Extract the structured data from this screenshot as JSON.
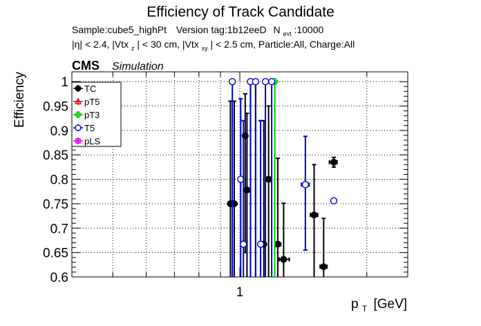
{
  "chart_data": {
    "type": "scatter",
    "title": "Efficiency of Track Candidate",
    "subtitle_line1": {
      "sample": "Sample:cube5_highPt",
      "version": "Version tag:1b12eeD",
      "n_label": "N",
      "n_sub": "evt",
      "n_value": ":10000"
    },
    "subtitle_line2": {
      "p1": "|η| < 2.4, |Vtx",
      "s1": "z",
      "p2": "| < 30 cm, |Vtx",
      "s2": "xy",
      "p3": "| < 2.5 cm, Particle:All, Charge:All"
    },
    "cms_label": "CMS",
    "simulation_label": "Simulation",
    "ylabel": "Efficiency",
    "xlabel_main": "p",
    "xlabel_sub": "T",
    "xlabel_unit": "[GeV]",
    "x_log_scale": true,
    "xlim": [
      0.4,
      2.5
    ],
    "ylim": [
      0.6,
      1.02
    ],
    "grid": true,
    "legend_position": "top-left",
    "x_tick_labels": [
      {
        "value": 1,
        "label": "1"
      }
    ],
    "y_tick_labels": [
      {
        "value": 1.0,
        "label": "1"
      },
      {
        "value": 0.95,
        "label": "0.95"
      },
      {
        "value": 0.9,
        "label": "0.9"
      },
      {
        "value": 0.85,
        "label": "0.85"
      },
      {
        "value": 0.8,
        "label": "0.8"
      },
      {
        "value": 0.75,
        "label": "0.75"
      },
      {
        "value": 0.7,
        "label": "0.7"
      },
      {
        "value": 0.65,
        "label": "0.65"
      },
      {
        "value": 0.6,
        "label": "0.6"
      }
    ],
    "series": [
      {
        "name": "TC",
        "color": "#000000",
        "marker": "filled-circle",
        "points": [
          {
            "x": 0.95,
            "y": 0.75,
            "ylo": 0.4,
            "yhi": 0.96
          },
          {
            "x": 0.97,
            "y": 0.75,
            "ylo": 0.4,
            "yhi": 0.96
          },
          {
            "x": 1.03,
            "y": 0.889,
            "ylo": 0.65,
            "yhi": 0.975
          },
          {
            "x": 1.04,
            "y": 0.778,
            "ylo": 0.5,
            "yhi": 0.935
          },
          {
            "x": 1.06,
            "y": 1.0,
            "ylo": 0.4,
            "yhi": 1.0
          },
          {
            "x": 1.09,
            "y": 1.0,
            "ylo": 0.4,
            "yhi": 1.0
          },
          {
            "x": 1.12,
            "y": 0.667,
            "ylo": 0.3,
            "yhi": 0.92
          },
          {
            "x": 1.14,
            "y": 0.667,
            "ylo": 0.3,
            "yhi": 0.92
          },
          {
            "x": 1.17,
            "y": 0.8,
            "ylo": 0.5,
            "yhi": 0.95
          },
          {
            "x": 1.23,
            "y": 0.667,
            "ylo": 0.35,
            "yhi": 0.843,
            "xlo": 1.22,
            "xhi": 1.25
          },
          {
            "x": 1.27,
            "y": 0.636,
            "ylo": 0.45,
            "yhi": 0.751,
            "xlo": 1.24,
            "xhi": 1.31
          },
          {
            "x": 1.5,
            "y": 0.727,
            "ylo": 0.58,
            "yhi": 0.83,
            "xlo": 1.47,
            "xhi": 1.53
          },
          {
            "x": 1.58,
            "y": 0.621,
            "ylo": 0.5,
            "yhi": 0.72,
            "xlo": 1.55,
            "xhi": 1.61
          },
          {
            "x": 1.67,
            "y": 0.835,
            "ylo": 0.825,
            "yhi": 0.845,
            "xlo": 1.63,
            "xhi": 1.7
          }
        ]
      },
      {
        "name": "pT5",
        "color": "#e8000b",
        "marker": "open-triangle",
        "points": []
      },
      {
        "name": "pT3",
        "color": "#00c800",
        "marker": "open-cross",
        "points": [
          {
            "x": 1.21,
            "y": 1.0,
            "ylo": 0.35,
            "yhi": 1.0
          }
        ]
      },
      {
        "name": "T5",
        "color": "#0000d0",
        "marker": "open-circle",
        "points": [
          {
            "x": 0.96,
            "y": 1.0,
            "ylo": 0.4,
            "yhi": 1.0
          },
          {
            "x": 1.005,
            "y": 0.8,
            "ylo": 0.5,
            "yhi": 0.965
          },
          {
            "x": 1.02,
            "y": 0.667,
            "ylo": 0.3,
            "yhi": 0.92
          },
          {
            "x": 1.06,
            "y": 1.0,
            "ylo": 0.4,
            "yhi": 1.0
          },
          {
            "x": 1.09,
            "y": 1.0,
            "ylo": 0.4,
            "yhi": 1.0
          },
          {
            "x": 1.12,
            "y": 0.667,
            "ylo": 0.3,
            "yhi": 0.92
          },
          {
            "x": 1.15,
            "y": 1.0,
            "ylo": 0.4,
            "yhi": 1.0
          },
          {
            "x": 1.19,
            "y": 1.0,
            "ylo": 0.4,
            "yhi": 1.0
          },
          {
            "x": 1.43,
            "y": 0.789,
            "ylo": 0.655,
            "yhi": 0.888,
            "xlo": 1.4,
            "xhi": 1.46
          },
          {
            "x": 1.67,
            "y": 0.756,
            "ylo": 0.752,
            "yhi": 0.76
          }
        ]
      },
      {
        "name": "pLS",
        "color": "#e000e0",
        "marker": "open-square-cross",
        "points": []
      }
    ]
  }
}
